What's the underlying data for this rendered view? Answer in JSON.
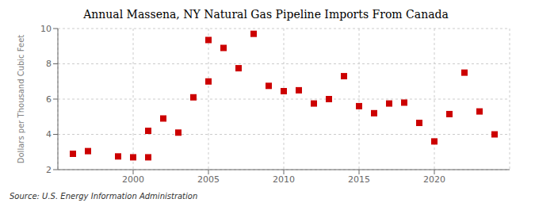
{
  "chart_data": {
    "type": "scatter",
    "title": "Annual Massena, NY Natural Gas Pipeline Imports From Canada",
    "ylabel": "Dollars per Thousand Cubic Feet",
    "annotations": [
      "Source: U.S. Energy Information Administration"
    ],
    "color": "#cc0000",
    "marker": "square",
    "grid": true,
    "xlim": [
      1995,
      2025
    ],
    "xticks": [
      2000,
      2005,
      2010,
      2015,
      2020
    ],
    "ylim": [
      2,
      10
    ],
    "yticks": [
      2,
      4,
      6,
      8,
      10
    ],
    "x": [
      1996,
      1997,
      1999,
      2000,
      2001,
      2001,
      2002,
      2003,
      2004,
      2005,
      2005,
      2006,
      2007,
      2008,
      2009,
      2010,
      2011,
      2012,
      2013,
      2014,
      2015,
      2016,
      2017,
      2018,
      2019,
      2020,
      2021,
      2022,
      2023,
      2024
    ],
    "values": [
      2.9,
      3.05,
      2.75,
      2.7,
      2.7,
      4.2,
      4.9,
      4.1,
      6.1,
      7.0,
      9.35,
      8.9,
      7.75,
      9.7,
      6.75,
      6.45,
      6.5,
      5.75,
      6.0,
      7.3,
      5.6,
      5.2,
      5.75,
      5.8,
      4.65,
      3.6,
      5.15,
      7.5,
      5.3,
      4.0
    ]
  }
}
